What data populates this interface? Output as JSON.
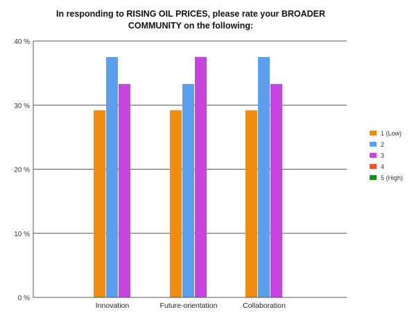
{
  "chart_data": {
    "type": "bar",
    "title_lines": [
      "In responding to RISING OIL PRICES, please rate your BROADER",
      "COMMUNITY on the following:"
    ],
    "categories": [
      "Innovation",
      "Future-orientation",
      "Collaboration"
    ],
    "series": [
      {
        "name": "1 (Low)",
        "color": "#f28c0f",
        "values": [
          29.2,
          29.2,
          29.2
        ]
      },
      {
        "name": "2",
        "color": "#5aa0ee",
        "values": [
          37.5,
          33.3,
          37.5
        ]
      },
      {
        "name": "3",
        "color": "#c744e0",
        "values": [
          33.3,
          37.5,
          33.3
        ]
      },
      {
        "name": "4",
        "color": "#f2522e",
        "values": [
          0,
          0,
          0
        ]
      },
      {
        "name": "5 (High)",
        "color": "#1a8a1a",
        "values": [
          0,
          0,
          0
        ]
      }
    ],
    "ylim": [
      0,
      40
    ],
    "yticks": [
      0,
      10,
      20,
      30,
      40
    ],
    "ytick_labels": [
      "0 %",
      "10 %",
      "20 %",
      "30 %",
      "40 %"
    ],
    "grid": true,
    "legend_position": "right"
  }
}
